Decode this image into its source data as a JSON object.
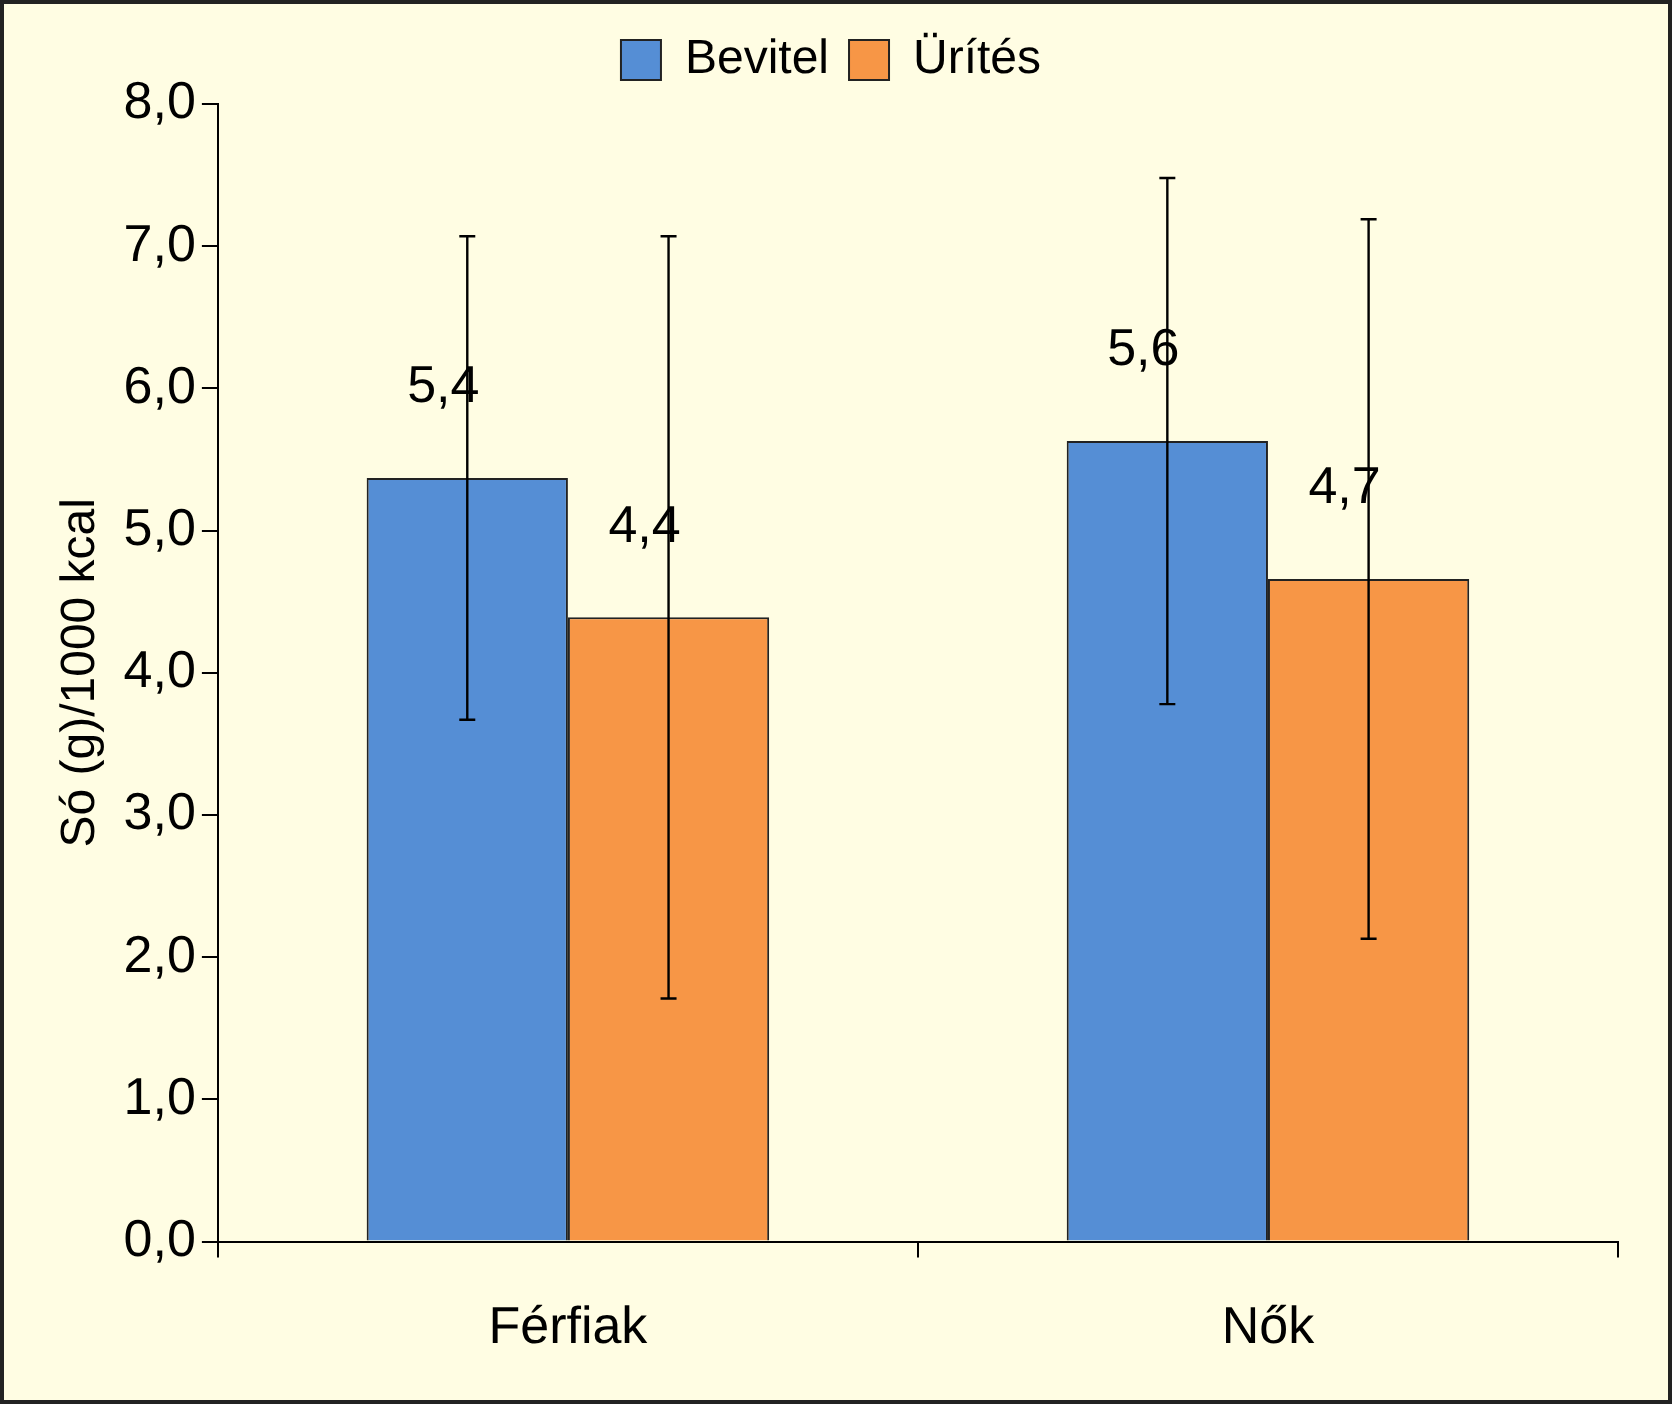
{
  "chart_data": {
    "type": "bar",
    "ylabel": "Só (g)/1000 kcal",
    "categories": [
      "Férfiak",
      "Nők"
    ],
    "series": [
      {
        "name": "Bevitel",
        "color": "#558ed5",
        "values": [
          5.37,
          5.63
        ],
        "errors": [
          1.7,
          1.85
        ],
        "value_labels": [
          "5,4",
          "5,6"
        ]
      },
      {
        "name": "Ürítés",
        "color": "#f79646",
        "values": [
          4.39,
          4.66
        ],
        "errors": [
          2.68,
          2.53
        ],
        "value_labels": [
          "4,4",
          "4,7"
        ]
      }
    ],
    "ylim": [
      0,
      8
    ],
    "yticks": [
      {
        "value": 0,
        "label": "0,0"
      },
      {
        "value": 1,
        "label": "1,0"
      },
      {
        "value": 2,
        "label": "2,0"
      },
      {
        "value": 3,
        "label": "3,0"
      },
      {
        "value": 4,
        "label": "4,0"
      },
      {
        "value": 5,
        "label": "5,0"
      },
      {
        "value": 6,
        "label": "6,0"
      },
      {
        "value": 7,
        "label": "7,0"
      },
      {
        "value": 8,
        "label": "8,0"
      }
    ],
    "grid": false,
    "legend": "top"
  }
}
